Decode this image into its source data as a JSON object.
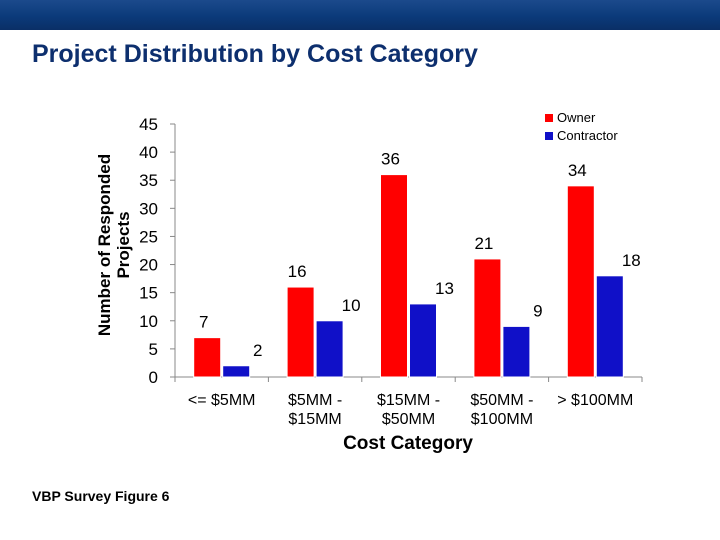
{
  "slide": {
    "title": "Project Distribution by Cost Category",
    "footer": "VBP Survey Figure 6"
  },
  "colors": {
    "top_bar": "#0b3a7a",
    "title": "#0d2f6e",
    "owner": "#ff0000",
    "contractor": "#1010c8"
  },
  "chart_data": {
    "type": "bar",
    "title": "",
    "xlabel": "Cost Category",
    "ylabel": "Number of Responded Projects",
    "ylim": [
      0,
      45
    ],
    "yticks": [
      0,
      5,
      10,
      15,
      20,
      25,
      30,
      35,
      40,
      45
    ],
    "grid": false,
    "legend_position": "top-right",
    "categories": [
      [
        "<= $5MM"
      ],
      [
        "$5MM -",
        "$15MM"
      ],
      [
        "$15MM -",
        "$50MM"
      ],
      [
        "$50MM -",
        "$100MM"
      ],
      [
        "> $100MM"
      ]
    ],
    "series": [
      {
        "name": "Owner",
        "color": "#ff0000",
        "values": [
          7,
          16,
          36,
          21,
          34
        ]
      },
      {
        "name": "Contractor",
        "color": "#1010c8",
        "values": [
          2,
          10,
          13,
          9,
          18
        ]
      }
    ]
  }
}
